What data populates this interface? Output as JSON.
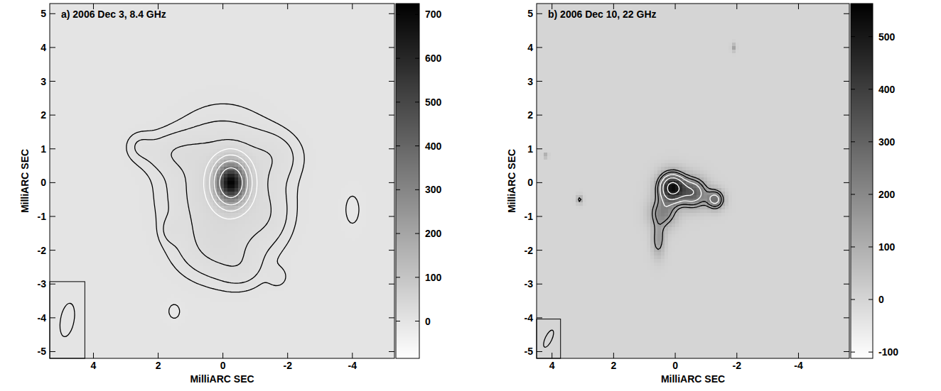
{
  "chart_data": [
    {
      "type": "contour",
      "title": "a) 2006 Dec 3, 8.4 GHz",
      "x_label": "MilliARC SEC",
      "y_label": "MilliARC SEC",
      "xlim": [
        5.35,
        -5.3
      ],
      "ylim": [
        -5.2,
        5.3
      ],
      "xticks": [
        4,
        2,
        0,
        -2,
        -4
      ],
      "yticks": [
        5,
        4,
        3,
        2,
        1,
        0,
        -1,
        -2,
        -3,
        -4,
        -5
      ],
      "colorbar": {
        "range": [
          -85,
          725
        ],
        "ticks": [
          0,
          100,
          200,
          300,
          400,
          500,
          600,
          700
        ]
      },
      "contour_levels": [
        -6,
        6,
        12,
        24,
        48,
        96,
        192,
        384
      ],
      "colors": [
        "#000000",
        "#000000",
        "#000000",
        "#000000",
        "#ffffff",
        "#ffffff",
        "#ffffff",
        "#ffffff"
      ],
      "beam": {
        "major": 1.0,
        "minor": 0.42,
        "pa": -10
      },
      "components": [
        {
          "x": -0.25,
          "y": 0.0,
          "peak": 680,
          "sigma_x": 0.3,
          "sigma_y": 0.38
        },
        {
          "x": 0.0,
          "y": -0.2,
          "peak": 40,
          "sigma_x": 1.1,
          "sigma_y": 1.3
        },
        {
          "x": 1.6,
          "y": 0.9,
          "peak": 14,
          "sigma_x": 0.7,
          "sigma_y": 0.4
        },
        {
          "x": 2.6,
          "y": 1.1,
          "peak": 8,
          "sigma_x": 0.3,
          "sigma_y": 0.3
        },
        {
          "x": -1.6,
          "y": 0.8,
          "peak": 12,
          "sigma_x": 0.6,
          "sigma_y": 0.5
        },
        {
          "x": -1.4,
          "y": -1.0,
          "peak": 10,
          "sigma_x": 0.5,
          "sigma_y": 0.6
        },
        {
          "x": 0.2,
          "y": -2.0,
          "peak": 14,
          "sigma_x": 0.8,
          "sigma_y": 0.6
        },
        {
          "x": -0.6,
          "y": -2.6,
          "peak": 9,
          "sigma_x": 0.5,
          "sigma_y": 0.4
        },
        {
          "x": 1.6,
          "y": -1.4,
          "peak": 9,
          "sigma_x": 0.2,
          "sigma_y": 0.25
        },
        {
          "x": -1.7,
          "y": -2.8,
          "peak": 9,
          "sigma_x": 0.2,
          "sigma_y": 0.2
        },
        {
          "x": -4.0,
          "y": -0.8,
          "peak": -10,
          "sigma_x": 0.2,
          "sigma_y": 0.4
        },
        {
          "x": 1.5,
          "y": -3.8,
          "peak": -9,
          "sigma_x": 0.2,
          "sigma_y": 0.25
        }
      ]
    },
    {
      "type": "contour",
      "title": "b) 2006 Dec 10, 22 GHz",
      "x_label": "MilliARC SEC",
      "y_label": "MilliARC SEC",
      "xlim": [
        4.5,
        -5.65
      ],
      "ylim": [
        -5.2,
        5.3
      ],
      "xticks": [
        4,
        2,
        0,
        -2,
        -4
      ],
      "yticks": [
        5,
        4,
        3,
        2,
        1,
        0,
        -1,
        -2,
        -3,
        -4,
        -5
      ],
      "colorbar": {
        "range": [
          -112,
          563
        ],
        "ticks": [
          -100,
          0,
          100,
          200,
          300,
          400,
          500
        ]
      },
      "contour_levels": [
        -110,
        110,
        160,
        230,
        330,
        470
      ],
      "colors": [
        "#000000",
        "#000000",
        "#000000",
        "#ffffff",
        "#ffffff",
        "#ffffff"
      ],
      "beam": {
        "major": 0.55,
        "minor": 0.22,
        "pa": -25
      },
      "components": [
        {
          "x": 0.1,
          "y": -0.15,
          "peak": 520,
          "sigma_x": 0.3,
          "sigma_y": 0.3
        },
        {
          "x": -0.6,
          "y": -0.3,
          "peak": 300,
          "sigma_x": 0.3,
          "sigma_y": 0.3
        },
        {
          "x": -1.3,
          "y": -0.5,
          "peak": 260,
          "sigma_x": 0.2,
          "sigma_y": 0.2
        },
        {
          "x": 0.4,
          "y": -0.9,
          "peak": 200,
          "sigma_x": 0.3,
          "sigma_y": 0.3
        },
        {
          "x": 0.55,
          "y": -1.7,
          "peak": 150,
          "sigma_x": 0.15,
          "sigma_y": 0.35
        },
        {
          "x": 4.2,
          "y": 0.8,
          "peak": 130,
          "sigma_x": 0.05,
          "sigma_y": 0.05
        },
        {
          "x": 3.1,
          "y": -0.5,
          "peak": 140,
          "sigma_x": 0.07,
          "sigma_y": 0.09
        },
        {
          "x": -1.9,
          "y": 4.0,
          "peak": 130,
          "sigma_x": 0.05,
          "sigma_y": 0.08
        }
      ]
    }
  ]
}
